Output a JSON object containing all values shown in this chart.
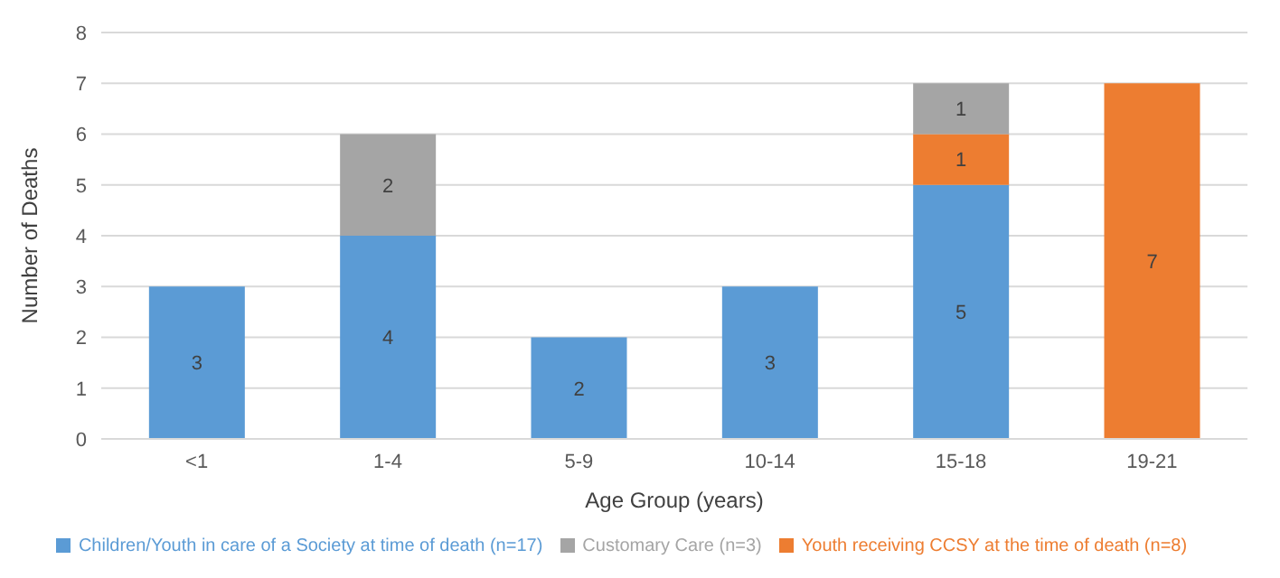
{
  "chart_data": {
    "type": "bar",
    "stacked": true,
    "xlabel": "Age Group (years)",
    "ylabel": "Number of Deaths",
    "categories": [
      "<1",
      "1-4",
      "5-9",
      "10-14",
      "15-18",
      "19-21"
    ],
    "series": [
      {
        "name": "Children/Youth in care of a Society at time of death (n=17)",
        "color": "#5b9bd5",
        "values": [
          3,
          4,
          2,
          3,
          5,
          null
        ]
      },
      {
        "name": "Youth receiving CCSY at the time of death (n=8)",
        "color": "#ed7d31",
        "values": [
          null,
          null,
          null,
          null,
          1,
          7
        ]
      },
      {
        "name": "Customary Care (n=3)",
        "color": "#a5a5a5",
        "values": [
          null,
          2,
          null,
          null,
          1,
          null
        ]
      }
    ],
    "ylim": [
      0,
      8
    ],
    "yticks": [
      0,
      1,
      2,
      3,
      4,
      5,
      6,
      7,
      8
    ],
    "grid": "y",
    "legend": "bottom",
    "data_labels": true
  }
}
